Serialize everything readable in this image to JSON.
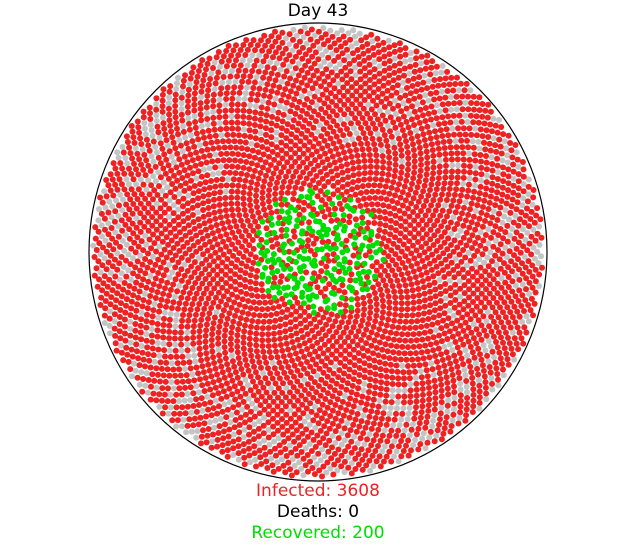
{
  "title": "Day 43",
  "stats": {
    "infected": "Infected: 3608",
    "deaths": "Deaths: 0",
    "recovered": "Recovered: 200"
  },
  "population": {
    "infected_count": 3608,
    "recovered_count": 200,
    "deaths_count": 0
  },
  "colors": {
    "infected": "#ee2222",
    "recovered": "#00dd00",
    "susceptible": "#c4c4c4",
    "boundary": "#000000",
    "deaths_text": "#000000"
  }
}
